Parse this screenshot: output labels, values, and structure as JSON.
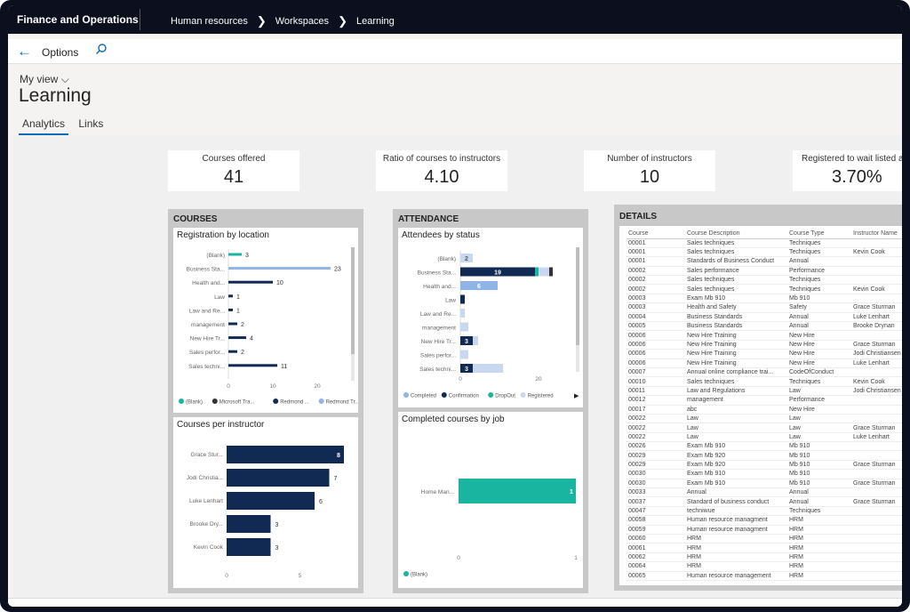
{
  "app": {
    "name": "Finance and Operations"
  },
  "breadcrumbs": [
    "Human resources",
    "Workspaces",
    "Learning"
  ],
  "toolbar": {
    "options_label": "Options"
  },
  "header": {
    "view_label": "My view",
    "title": "Learning"
  },
  "tabs": [
    {
      "label": "Analytics"
    },
    {
      "label": "Links"
    }
  ],
  "kpis": [
    {
      "label": "Courses offered",
      "value": "41"
    },
    {
      "label": "Ratio of courses to instructors",
      "value": "4.10"
    },
    {
      "label": "Number of instructors",
      "value": "10"
    },
    {
      "label": "Registered to wait listed attendees",
      "value": "3.70%"
    }
  ],
  "courses": {
    "title": "COURSES",
    "registration_by_location": {
      "title": "Registration by location",
      "categories": [
        "(Blank)",
        "Business Sta...",
        "Health and...",
        "Law",
        "Law and Re...",
        "management",
        "New Hire Tr...",
        "Sales perfor...",
        "Sales techni..."
      ],
      "bars": [
        {
          "value": 3,
          "color": "#1ab5a0"
        },
        {
          "value": 23,
          "color": "#8fb4e8"
        },
        {
          "value": 10,
          "color": "#102a54"
        },
        {
          "value": 1,
          "color": "#102a54"
        },
        {
          "value": 1,
          "color": "#102a54"
        },
        {
          "value": 2,
          "color": "#102a54"
        },
        {
          "value": 4,
          "color": "#102a54"
        },
        {
          "value": 2,
          "color": "#102a54"
        },
        {
          "value": 11,
          "color": "#102a54"
        }
      ],
      "ticks": [
        "0",
        "10",
        "20"
      ],
      "legend": [
        {
          "label": "(Blank)",
          "color": "#1ab5a0"
        },
        {
          "label": "Microsoft Tra...",
          "color": "#333333"
        },
        {
          "label": "Redmond ...",
          "color": "#102a54"
        },
        {
          "label": "Redmond Tr...",
          "color": "#8fb4e8"
        }
      ]
    },
    "courses_per_instructor": {
      "title": "Courses per instructor",
      "categories": [
        "Grace Stur...",
        "Jodi Christia...",
        "Luke Lenhart",
        "Brooke Dry...",
        "Kevin Cook"
      ],
      "values": [
        8,
        7,
        6,
        3,
        3
      ],
      "ticks": [
        "0",
        "5"
      ]
    }
  },
  "attendance": {
    "title": "ATTENDANCE",
    "attendees_by_status": {
      "title": "Attendees by status",
      "categories": [
        "(Blank)",
        "Business Sta...",
        "Health and...",
        "Law",
        "Law and Re...",
        "management",
        "New Hire Tr...",
        "Sales perfor...",
        "Sales techni..."
      ],
      "ticks": [
        "0",
        "20"
      ],
      "legend": [
        {
          "label": "Completed",
          "color": "#8fb4e8"
        },
        {
          "label": "Confirmation",
          "color": "#102a54"
        },
        {
          "label": "DropOut",
          "color": "#1ab5a0"
        },
        {
          "label": "Registered",
          "color": "#c8d8f0"
        }
      ],
      "bar_labels": [
        "2",
        "19",
        "6",
        "3",
        "3"
      ]
    },
    "completed_by_job": {
      "title": "Completed courses by job",
      "categories": [
        "Home Man..."
      ],
      "values": [
        1
      ],
      "ticks": [
        "0",
        "1"
      ],
      "legend": [
        {
          "label": "(Blank)",
          "color": "#1ab5a0"
        }
      ]
    }
  },
  "details": {
    "title": "DETAILS",
    "columns": [
      "Course",
      "Course Description",
      "Course Type",
      "Instructor Name"
    ],
    "rows": [
      [
        "00001",
        "Sales techniques",
        "Techniques",
        ""
      ],
      [
        "00001",
        "Sales techniques",
        "Techniques",
        "Kevin Cook"
      ],
      [
        "00001",
        "Standards of Business Conduct",
        "Annual",
        ""
      ],
      [
        "00002",
        "Sales performance",
        "Performance",
        ""
      ],
      [
        "00002",
        "Sales techniques",
        "Techniques",
        ""
      ],
      [
        "00002",
        "Sales techniques",
        "Techniques",
        "Kevin Cook"
      ],
      [
        "00003",
        "Exam Mb 910",
        "Mb 910",
        ""
      ],
      [
        "00003",
        "Health and Safety",
        "Safety",
        "Grace Sturman"
      ],
      [
        "00004",
        "Business Standards",
        "Annual",
        "Luke Lenhart"
      ],
      [
        "00005",
        "Business Standards",
        "Annual",
        "Brooke Drynan"
      ],
      [
        "00006",
        "New Hire Training",
        "New Hire",
        ""
      ],
      [
        "00006",
        "New Hire Training",
        "New Hire",
        "Grace Sturman"
      ],
      [
        "00006",
        "New Hire Training",
        "New Hire",
        "Jodi Christiansen"
      ],
      [
        "00006",
        "New Hire Training",
        "New Hire",
        "Luke Lenhart"
      ],
      [
        "00007",
        "Annual online compliance trai...",
        "CodeOfConduct",
        ""
      ],
      [
        "00010",
        "Sales techniques",
        "Techniques",
        "Kevin Cook"
      ],
      [
        "00011",
        "Law and Regulations",
        "Law",
        "Jodi Christiansen"
      ],
      [
        "00012",
        "management",
        "Performance",
        ""
      ],
      [
        "00017",
        "abc",
        "New Hire",
        ""
      ],
      [
        "00022",
        "Law",
        "Law",
        ""
      ],
      [
        "00022",
        "Law",
        "Law",
        "Grace Sturman"
      ],
      [
        "00022",
        "Law",
        "Law",
        "Luke Lenhart"
      ],
      [
        "00026",
        "Exam Mb 910",
        "Mb 910",
        ""
      ],
      [
        "00029",
        "Exam Mb 920",
        "Mb 910",
        ""
      ],
      [
        "00029",
        "Exam Mb 920",
        "Mb 910",
        "Grace Sturman"
      ],
      [
        "00030",
        "Exam Mb 910",
        "Mb 910",
        ""
      ],
      [
        "00030",
        "Exam Mb 910",
        "Mb 910",
        "Grace Sturman"
      ],
      [
        "00033",
        "Annual",
        "Annual",
        ""
      ],
      [
        "00037",
        "Standard of business conduct",
        "Annual",
        "Grace Sturman"
      ],
      [
        "00047",
        "techniwue",
        "Techniques",
        ""
      ],
      [
        "00058",
        "Human resource managment",
        "HRM",
        ""
      ],
      [
        "00059",
        "Human resource managment",
        "HRM",
        ""
      ],
      [
        "00060",
        "HRM",
        "HRM",
        ""
      ],
      [
        "00061",
        "HRM",
        "HRM",
        ""
      ],
      [
        "00062",
        "HRM",
        "HRM",
        ""
      ],
      [
        "00064",
        "HRM",
        "HRM",
        ""
      ],
      [
        "00065",
        "Human resource management",
        "HRM",
        ""
      ]
    ]
  }
}
